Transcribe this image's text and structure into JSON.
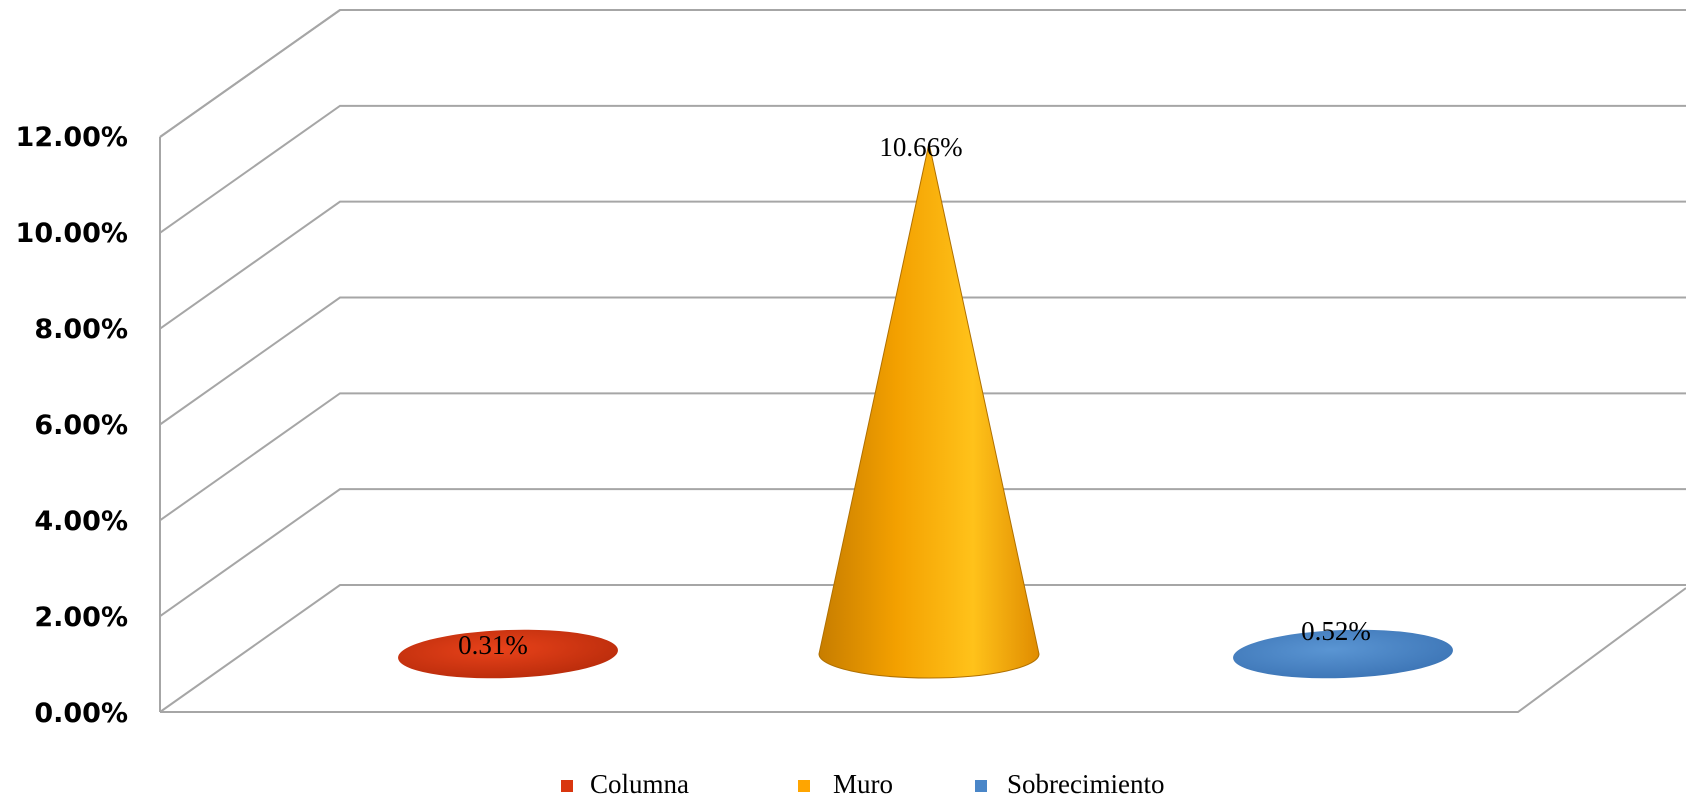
{
  "chart_data": {
    "type": "bar",
    "style": "3d-cone",
    "categories": [
      "Columna",
      "Muro",
      "Sobrecimiento"
    ],
    "values": [
      0.0031,
      0.1066,
      0.0052
    ],
    "data_labels": [
      "0.31%",
      "10.66%",
      "0.52%"
    ],
    "colors": [
      "#d9360f",
      "#ffa500",
      "#4a86c8"
    ],
    "title": "",
    "xlabel": "",
    "ylabel": "",
    "ylim": [
      0,
      0.12
    ],
    "yticks": [
      "0.00%",
      "2.00%",
      "4.00%",
      "6.00%",
      "8.00%",
      "10.00%",
      "12.00%"
    ],
    "grid": true,
    "legend": {
      "position": "bottom",
      "entries": [
        {
          "label": "Columna",
          "color": "#d9360f"
        },
        {
          "label": "Muro",
          "color": "#ffa500"
        },
        {
          "label": "Sobrecimiento",
          "color": "#4a86c8"
        }
      ]
    }
  }
}
